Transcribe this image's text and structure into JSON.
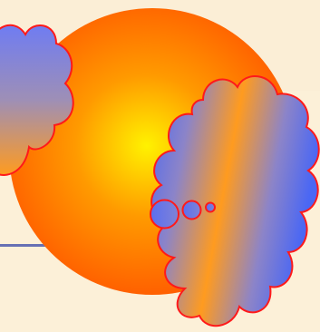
{
  "colors": {
    "background": "#fcf0d8",
    "background_stripe": "#f7e9cf",
    "rule_line": "#6670b4",
    "sun_center": "#fff200",
    "sun_mid": "#ff9a00",
    "sun_edge": "#ff5a00",
    "cloud_outline": "#ff1a1a",
    "cloud_blue": "#5b6ef0",
    "cloud_orange": "#ff9b1f"
  },
  "shapes": {
    "sun": "sun-shape",
    "left_cloud": "cloud-shape",
    "right_cloud": "cloud-shape",
    "thought_bubbles": "thought-bubble-trail"
  }
}
